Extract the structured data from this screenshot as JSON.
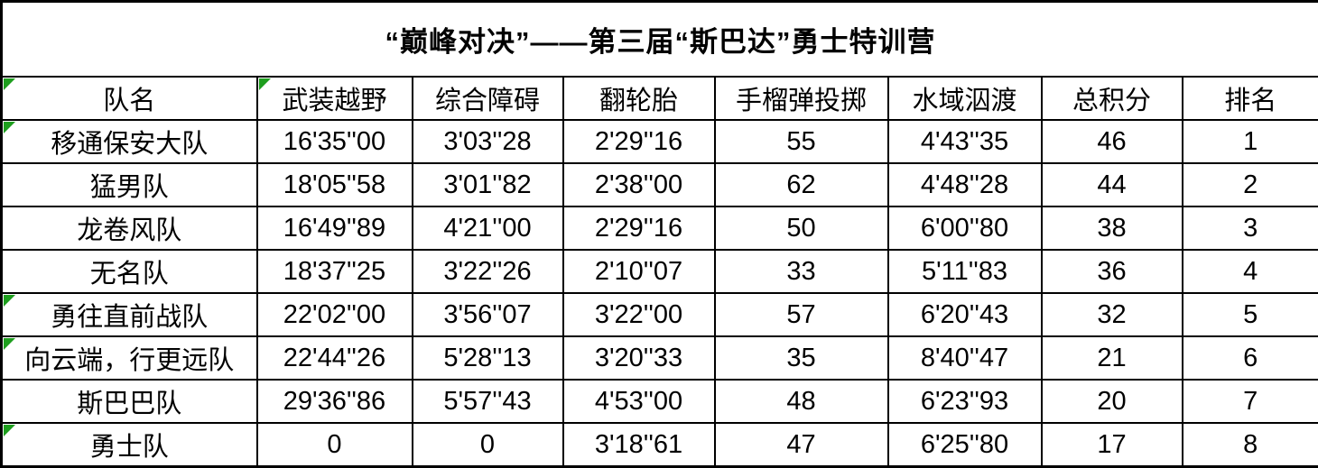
{
  "accent": {
    "flag_color": "#1e9e1e",
    "border_color": "#000000",
    "flag_icon_meaning": "cell-error-indicator-triangle-icon"
  },
  "title": "“巅峰对决”——第三届“斯巴达”勇士特训营",
  "table": {
    "columns": [
      {
        "label": "队名",
        "flag": true
      },
      {
        "label": "武装越野",
        "flag": true
      },
      {
        "label": "综合障碍",
        "flag": false
      },
      {
        "label": "翻轮胎",
        "flag": false
      },
      {
        "label": "手榴弹投掷",
        "flag": false
      },
      {
        "label": "水域泅渡",
        "flag": false
      },
      {
        "label": "总积分",
        "flag": false
      },
      {
        "label": "排名",
        "flag": false
      }
    ],
    "rows": [
      {
        "flag": true,
        "cells": [
          "移通保安大队",
          "16'35''00",
          "3'03''28",
          "2'29''16",
          "55",
          "4'43''35",
          "46",
          "1"
        ]
      },
      {
        "flag": false,
        "cells": [
          "猛男队",
          "18'05''58",
          "3'01''82",
          "2'38''00",
          "62",
          "4'48''28",
          "44",
          "2"
        ]
      },
      {
        "flag": false,
        "cells": [
          "龙卷风队",
          "16'49''89",
          "4'21''00",
          "2'29''16",
          "50",
          "6'00''80",
          "38",
          "3"
        ]
      },
      {
        "flag": false,
        "cells": [
          "无名队",
          "18'37''25",
          "3'22''26",
          "2'10''07",
          "33",
          "5'11''83",
          "36",
          "4"
        ]
      },
      {
        "flag": true,
        "cells": [
          "勇往直前战队",
          "22'02''00",
          "3'56''07",
          "3'22''00",
          "57",
          "6'20''43",
          "32",
          "5"
        ]
      },
      {
        "flag": true,
        "cells": [
          "向云端，行更远队",
          "22'44''26",
          "5'28''13",
          "3'20''33",
          "35",
          "8'40''47",
          "21",
          "6"
        ]
      },
      {
        "flag": false,
        "cells": [
          "斯巴巴队",
          "29'36''86",
          "5'57''43",
          "4'53''00",
          "48",
          "6'23''93",
          "20",
          "7"
        ]
      },
      {
        "flag": true,
        "cells": [
          "勇士队",
          "0",
          "0",
          "3'18''61",
          "47",
          "6'25''80",
          "17",
          "8"
        ]
      }
    ]
  }
}
